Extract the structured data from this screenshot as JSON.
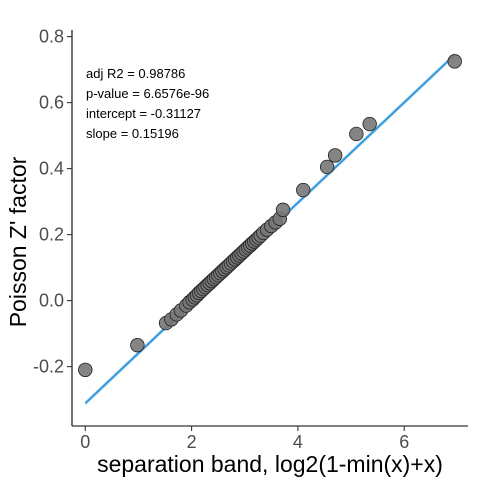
{
  "chart_data": {
    "type": "scatter",
    "xlabel": "separation band, log2(1-min(x)+x)",
    "ylabel": "Poisson Z' factor",
    "xlim": [
      -0.25,
      7.2
    ],
    "ylim": [
      -0.38,
      0.82
    ],
    "x_ticks": [
      0,
      2,
      4,
      6
    ],
    "x_tick_labels": [
      "0",
      "2",
      "4",
      "6"
    ],
    "y_ticks": [
      -0.2,
      0.0,
      0.2,
      0.4,
      0.6,
      0.8
    ],
    "y_tick_labels": [
      "-0.2",
      "0.0",
      "0.2",
      "0.4",
      "0.6",
      "0.8"
    ],
    "grid": false,
    "annotations": [
      "adj R2 =  0.98786",
      "p-value = 6.6576e-96",
      "intercept = -0.31127",
      "slope = 0.15196"
    ],
    "fit": {
      "intercept": -0.31127,
      "slope": 0.15196,
      "color": "#3399dd"
    },
    "point_color": "#777777",
    "points": {
      "x": [
        0.0,
        0.98,
        1.52,
        1.62,
        1.72,
        1.8,
        1.9,
        1.96,
        2.02,
        2.06,
        2.1,
        2.14,
        2.18,
        2.22,
        2.26,
        2.3,
        2.34,
        2.38,
        2.42,
        2.46,
        2.5,
        2.54,
        2.58,
        2.62,
        2.66,
        2.7,
        2.74,
        2.78,
        2.82,
        2.86,
        2.9,
        2.94,
        2.98,
        3.02,
        3.06,
        3.1,
        3.14,
        3.18,
        3.22,
        3.26,
        3.3,
        3.35,
        3.42,
        3.5,
        3.58,
        3.66,
        3.72,
        4.1,
        4.55,
        4.7,
        5.1,
        5.35,
        6.95
      ],
      "y": [
        -0.21,
        -0.135,
        -0.068,
        -0.057,
        -0.042,
        -0.03,
        -0.015,
        -0.005,
        0.003,
        0.01,
        0.016,
        0.023,
        0.029,
        0.035,
        0.041,
        0.047,
        0.053,
        0.059,
        0.065,
        0.071,
        0.077,
        0.083,
        0.089,
        0.095,
        0.101,
        0.107,
        0.113,
        0.119,
        0.125,
        0.131,
        0.137,
        0.143,
        0.149,
        0.155,
        0.161,
        0.167,
        0.173,
        0.179,
        0.185,
        0.191,
        0.197,
        0.205,
        0.215,
        0.226,
        0.237,
        0.248,
        0.275,
        0.335,
        0.405,
        0.44,
        0.505,
        0.535,
        0.725
      ]
    }
  }
}
